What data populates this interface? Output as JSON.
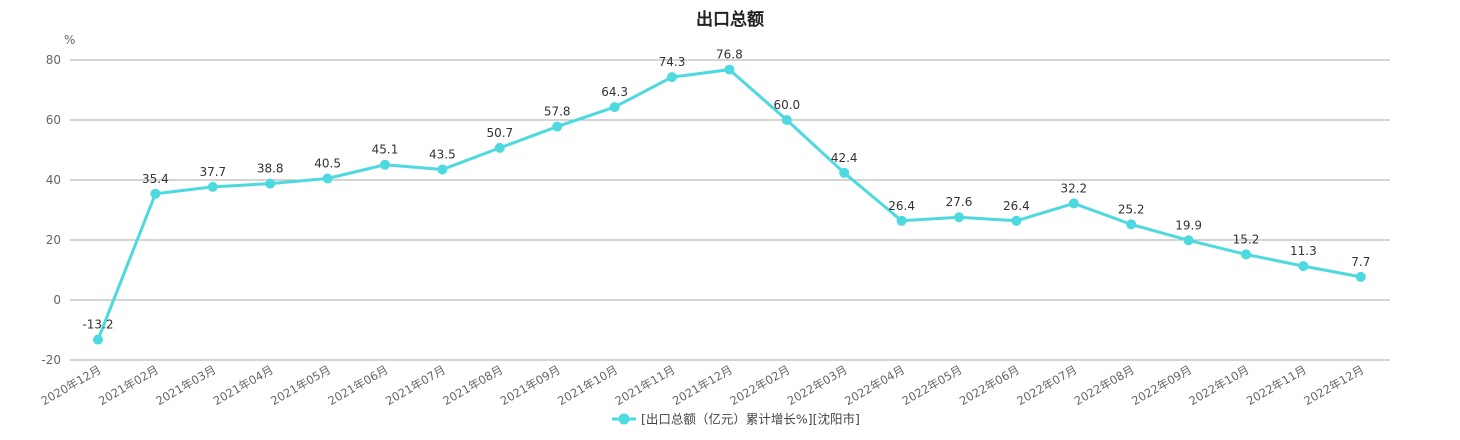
{
  "chart_data": {
    "type": "line",
    "title": "出口总额",
    "ylabel": "%",
    "ylim": [
      -20,
      80
    ],
    "yticks": [
      -20,
      0,
      20,
      40,
      60,
      80
    ],
    "grid": true,
    "legend_position": "bottom-center",
    "categories": [
      "2020年12月",
      "2021年02月",
      "2021年03月",
      "2021年04月",
      "2021年05月",
      "2021年06月",
      "2021年07月",
      "2021年08月",
      "2021年09月",
      "2021年10月",
      "2021年11月",
      "2021年12月",
      "2022年02月",
      "2022年03月",
      "2022年04月",
      "2022年05月",
      "2022年06月",
      "2022年07月",
      "2022年08月",
      "2022年09月",
      "2022年10月",
      "2022年11月",
      "2022年12月"
    ],
    "series": [
      {
        "name": "[出口总额（亿元）累计增长%][沈阳市]",
        "color": "#4dd9e0",
        "values": [
          -13.2,
          35.4,
          37.7,
          38.8,
          40.5,
          45.1,
          43.5,
          50.7,
          57.8,
          64.3,
          74.3,
          76.8,
          60.0,
          42.4,
          26.4,
          27.6,
          26.4,
          32.2,
          25.2,
          19.9,
          15.2,
          11.3,
          7.7
        ],
        "labels": [
          "-13.2",
          "35.4",
          "37.7",
          "38.8",
          "40.5",
          "45.1",
          "43.5",
          "50.7",
          "57.8",
          "64.3",
          "74.3",
          "76.8",
          "60.0",
          "42.4",
          "26.4",
          "27.6",
          "26.4",
          "32.2",
          "25.2",
          "19.9",
          "15.2",
          "11.3",
          "7.7"
        ]
      }
    ]
  }
}
